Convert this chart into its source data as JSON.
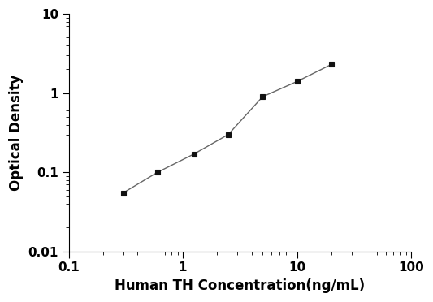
{
  "x": [
    0.3,
    0.6,
    1.25,
    2.5,
    5,
    10,
    20
  ],
  "y": [
    0.055,
    0.1,
    0.17,
    0.3,
    0.9,
    1.4,
    2.3
  ],
  "xlabel": "Human TH Concentration(ng/mL)",
  "ylabel": "Optical Density",
  "xlim": [
    0.1,
    100
  ],
  "ylim": [
    0.01,
    10
  ],
  "xticks": [
    0.1,
    1,
    10,
    100
  ],
  "yticks": [
    0.01,
    0.1,
    1,
    10
  ],
  "line_color": "#666666",
  "marker_color": "#111111",
  "marker": "s",
  "marker_size": 5,
  "line_width": 1.0,
  "background_color": "#ffffff",
  "xlabel_fontsize": 12,
  "ylabel_fontsize": 12,
  "tick_fontsize": 11,
  "figsize": [
    5.33,
    3.72
  ],
  "dpi": 100
}
